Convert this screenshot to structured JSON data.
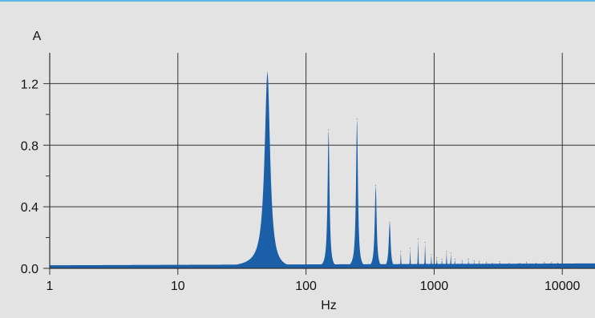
{
  "chart_data": {
    "type": "area",
    "title": "",
    "xlabel": "Hz",
    "ylabel": "A",
    "x_scale": "log",
    "xlim": [
      1,
      18000
    ],
    "ylim": [
      0,
      1.4
    ],
    "x_ticks": [
      1,
      10,
      100,
      1000,
      10000
    ],
    "x_tick_labels": [
      "1",
      "10",
      "100",
      "1000",
      "10000"
    ],
    "y_ticks": [
      0.0,
      0.4,
      0.8,
      1.2
    ],
    "y_tick_labels": [
      "0.0",
      "0.4",
      "0.8",
      "1.2"
    ],
    "grid": true,
    "legend": "none",
    "colors": {
      "fill": "#1a5fa8",
      "grid": "#333333",
      "background": "#e3e3e3",
      "top_rule": "#5bb8e8"
    },
    "baseline_level": 0.02,
    "peaks": [
      {
        "x": 50,
        "y": 1.27
      },
      {
        "x": 150,
        "y": 0.9
      },
      {
        "x": 250,
        "y": 0.97
      },
      {
        "x": 350,
        "y": 0.54
      },
      {
        "x": 450,
        "y": 0.3
      },
      {
        "x": 550,
        "y": 0.11
      },
      {
        "x": 650,
        "y": 0.13
      },
      {
        "x": 750,
        "y": 0.19
      },
      {
        "x": 850,
        "y": 0.17
      },
      {
        "x": 950,
        "y": 0.09
      },
      {
        "x": 1050,
        "y": 0.07
      },
      {
        "x": 1150,
        "y": 0.06
      },
      {
        "x": 1250,
        "y": 0.11
      },
      {
        "x": 1350,
        "y": 0.1
      },
      {
        "x": 1450,
        "y": 0.06
      },
      {
        "x": 1650,
        "y": 0.05
      },
      {
        "x": 1850,
        "y": 0.06
      },
      {
        "x": 2050,
        "y": 0.05
      },
      {
        "x": 2250,
        "y": 0.045
      },
      {
        "x": 2550,
        "y": 0.04
      },
      {
        "x": 2850,
        "y": 0.035
      },
      {
        "x": 3250,
        "y": 0.045
      },
      {
        "x": 3850,
        "y": 0.035
      },
      {
        "x": 4650,
        "y": 0.035
      },
      {
        "x": 5250,
        "y": 0.04
      },
      {
        "x": 6250,
        "y": 0.035
      },
      {
        "x": 7250,
        "y": 0.04
      },
      {
        "x": 8250,
        "y": 0.04
      },
      {
        "x": 9250,
        "y": 0.035
      }
    ]
  }
}
